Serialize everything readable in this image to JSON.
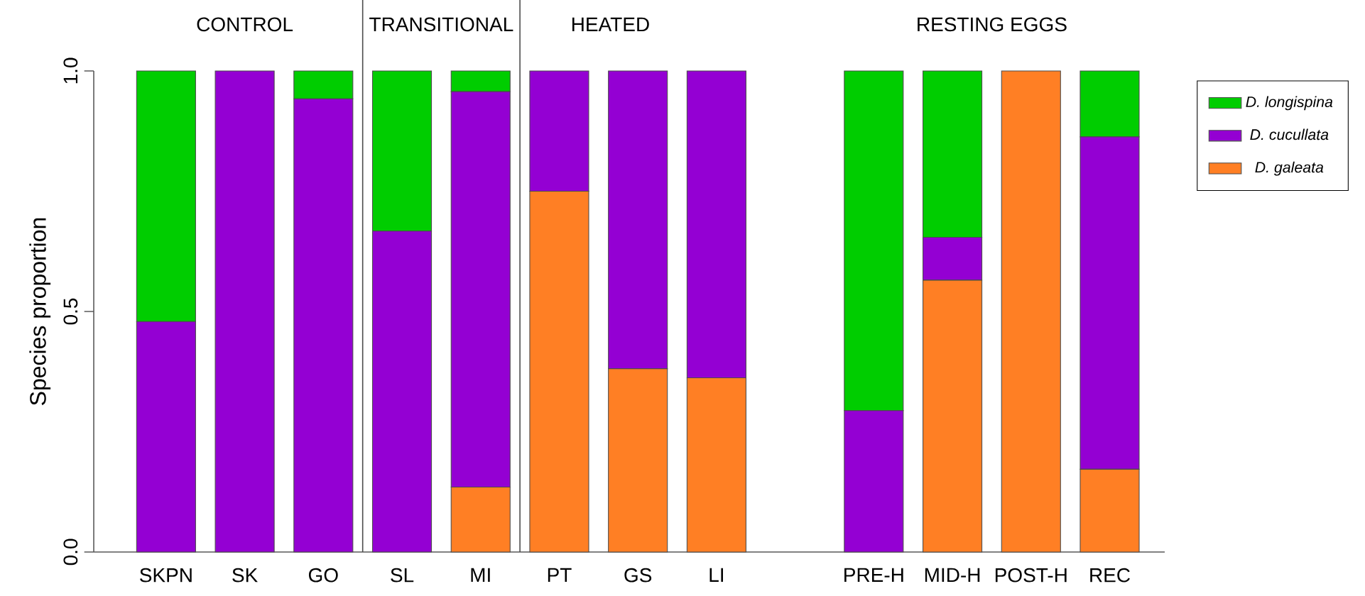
{
  "chart_data": {
    "type": "bar",
    "stacked": true,
    "ylabel": "Species proportion",
    "categories": [
      "SKPN",
      "SK",
      "GO",
      "SL",
      "MI",
      "PT",
      "GS",
      "LI",
      null,
      "PRE-H",
      "MID-H",
      "POST-H",
      "REC"
    ],
    "series": [
      {
        "name": "D. galeata",
        "color": "#ff7f24",
        "values": [
          0,
          0,
          0,
          0,
          0.135,
          0.75,
          0.381,
          0.362,
          null,
          0,
          0.565,
          1,
          0.172
        ]
      },
      {
        "name": "D. cucullata",
        "color": "#9400d3",
        "values": [
          0.479,
          1,
          0.942,
          0.667,
          0.822,
          0.25,
          0.619,
          0.638,
          null,
          0.294,
          0.089,
          0,
          0.691
        ]
      },
      {
        "name": "D. longispina",
        "color": "#00cd00",
        "values": [
          0.521,
          0,
          0.058,
          0.333,
          0.043,
          0,
          0,
          0,
          null,
          0.706,
          0.346,
          0,
          0.137
        ]
      }
    ],
    "ylim": [
      0,
      1
    ],
    "yticks": [
      {
        "value": 0,
        "label": "0.0"
      },
      {
        "value": 0.5,
        "label": "0.5"
      },
      {
        "value": 1,
        "label": "1.0"
      }
    ],
    "annotations": [
      "CONTROL",
      "TRANSITIONAL",
      "HEATED",
      "RESTING EGGS"
    ],
    "grid": false,
    "legend": "right"
  }
}
